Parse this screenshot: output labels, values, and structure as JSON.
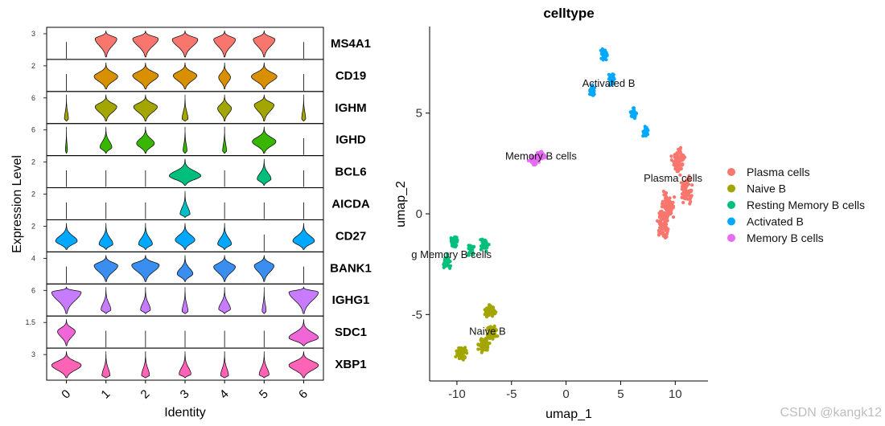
{
  "chart_data": [
    {
      "type": "violin",
      "xlabel": "Identity",
      "ylabel": "Expression Level",
      "identities": [
        "0",
        "1",
        "2",
        "3",
        "4",
        "5",
        "6"
      ],
      "panels": [
        {
          "gene": "MS4A1",
          "color": "#F8766D",
          "tick": "3",
          "ymax": 4.0,
          "width": [
            0.0,
            0.55,
            0.65,
            0.65,
            0.55,
            0.55,
            0.0
          ],
          "center": [
            0.0,
            2.7,
            2.7,
            2.6,
            2.6,
            2.6,
            0.0
          ]
        },
        {
          "gene": "CD19",
          "color": "#D89000",
          "tick": "2",
          "ymax": 2.8,
          "width": [
            0.0,
            0.6,
            0.65,
            0.6,
            0.3,
            0.65,
            0.0
          ],
          "center": [
            0.0,
            1.3,
            1.4,
            1.4,
            1.2,
            1.3,
            0.0
          ]
        },
        {
          "gene": "IGHM",
          "color": "#A3A500",
          "tick": "6",
          "ymax": 7.5,
          "width": [
            0.1,
            0.55,
            0.6,
            0.15,
            0.35,
            0.5,
            0.1
          ],
          "center": [
            0.0,
            4.0,
            4.0,
            0.5,
            3.5,
            4.5,
            0.5
          ]
        },
        {
          "gene": "IGHD",
          "color": "#39B600",
          "tick": "6",
          "ymax": 7.0,
          "width": [
            0.05,
            0.3,
            0.45,
            0.1,
            0.1,
            0.6,
            0.0
          ],
          "center": [
            0.0,
            1.5,
            2.5,
            0.3,
            0.3,
            3.0,
            0.0
          ]
        },
        {
          "gene": "BCL6",
          "color": "#00BF7D",
          "tick": "2",
          "ymax": 2.6,
          "width": [
            0.0,
            0.0,
            0.0,
            0.8,
            0.0,
            0.35,
            0.0
          ],
          "center": [
            0.0,
            0.0,
            0.0,
            0.9,
            0.0,
            0.6,
            0.0
          ]
        },
        {
          "gene": "AICDA",
          "color": "#00BFC4",
          "tick": "2",
          "ymax": 2.6,
          "width": [
            0.0,
            0.0,
            0.0,
            0.25,
            0.0,
            0.0,
            0.0
          ],
          "center": [
            0.0,
            0.0,
            0.0,
            0.3,
            0.0,
            0.0,
            0.0
          ]
        },
        {
          "gene": "CD27",
          "color": "#00A9FF",
          "tick": "2",
          "ymax": 2.6,
          "width": [
            0.55,
            0.35,
            0.35,
            0.5,
            0.35,
            0.0,
            0.55
          ],
          "center": [
            0.8,
            0.5,
            0.5,
            0.9,
            0.5,
            0.0,
            0.8
          ]
        },
        {
          "gene": "BANK1",
          "color": "#3A8EF0",
          "tick": "4",
          "ymax": 4.6,
          "width": [
            0.0,
            0.6,
            0.7,
            0.4,
            0.55,
            0.5,
            0.0
          ],
          "center": [
            0.0,
            2.7,
            2.8,
            1.3,
            2.5,
            2.7,
            0.0
          ]
        },
        {
          "gene": "IGHG1",
          "color": "#C77CFF",
          "tick": "6",
          "ymax": 7.5,
          "width": [
            0.75,
            0.25,
            0.25,
            0.15,
            0.3,
            0.1,
            0.75
          ],
          "center": [
            6.0,
            1.0,
            1.0,
            0.5,
            1.2,
            0.3,
            6.0
          ]
        },
        {
          "gene": "SDC1",
          "color": "#F066D6",
          "tick": "1.5",
          "ymax": 1.9,
          "width": [
            0.45,
            0.0,
            0.0,
            0.0,
            0.0,
            0.0,
            0.75
          ],
          "center": [
            1.0,
            0.0,
            0.0,
            0.0,
            0.0,
            0.0,
            0.55
          ]
        },
        {
          "gene": "XBP1",
          "color": "#FF63B6",
          "tick": "3",
          "ymax": 3.9,
          "width": [
            0.75,
            0.2,
            0.2,
            0.3,
            0.2,
            0.25,
            0.75
          ],
          "center": [
            1.8,
            0.3,
            0.3,
            0.5,
            0.3,
            0.4,
            1.8
          ]
        }
      ]
    },
    {
      "type": "scatter",
      "title": "celltype",
      "xlabel": "umap_1",
      "ylabel": "umap_2",
      "xlim": [
        -12.5,
        13
      ],
      "ylim": [
        -8.3,
        9.3
      ],
      "xticks": [
        -10,
        -5,
        0,
        5,
        10
      ],
      "yticks": [
        -5,
        0,
        5
      ],
      "legend": {
        "position": "right",
        "entries": [
          "Plasma cells",
          "Naive B",
          "Resting Memory B cells",
          "Activated B",
          "Memory B cells"
        ]
      },
      "clusters": [
        {
          "name": "Plasma cells",
          "color": "#F8766D",
          "label": "Plasma cells",
          "label_pos": [
            9.8,
            1.6
          ],
          "n": 330,
          "centers": [
            [
              10.3,
              2.6
            ],
            [
              9.3,
              0.4
            ],
            [
              8.9,
              -0.6
            ],
            [
              11.0,
              1.2
            ]
          ],
          "spread": [
            0.9,
            1.0
          ]
        },
        {
          "name": "Naive B",
          "color": "#A3A500",
          "label": "Naive B",
          "label_pos": [
            -7.2,
            -6.0
          ],
          "n": 230,
          "centers": [
            [
              -7.0,
              -4.8
            ],
            [
              -6.8,
              -5.9
            ],
            [
              -9.6,
              -6.9
            ],
            [
              -7.5,
              -6.5
            ]
          ],
          "spread": [
            0.8,
            0.6
          ]
        },
        {
          "name": "Resting Memory B cells",
          "color": "#00BF7D",
          "label": "g Memory B cells",
          "label_pos": [
            -10.5,
            -2.2
          ],
          "n": 170,
          "centers": [
            [
              -10.3,
              -1.4
            ],
            [
              -10.9,
              -2.4
            ],
            [
              -8.7,
              -1.8
            ],
            [
              -7.5,
              -1.5
            ]
          ],
          "spread": [
            0.6,
            0.5
          ]
        },
        {
          "name": "Activated B",
          "color": "#00A9FF",
          "label": "Activated B",
          "label_pos": [
            3.9,
            6.3
          ],
          "n": 190,
          "centers": [
            [
              3.5,
              7.9
            ],
            [
              4.2,
              6.7
            ],
            [
              2.4,
              6.1
            ],
            [
              6.2,
              5.0
            ],
            [
              7.3,
              4.1
            ]
          ],
          "spread": [
            0.45,
            0.45
          ]
        },
        {
          "name": "Memory B cells",
          "color": "#E76BF3",
          "label": "Memory B cells",
          "label_pos": [
            -2.3,
            2.7
          ],
          "n": 120,
          "centers": [
            [
              -2.3,
              2.9
            ],
            [
              -3.0,
              2.6
            ]
          ],
          "spread": [
            0.65,
            0.35
          ]
        }
      ]
    }
  ],
  "watermark": "CSDN @kangk12"
}
